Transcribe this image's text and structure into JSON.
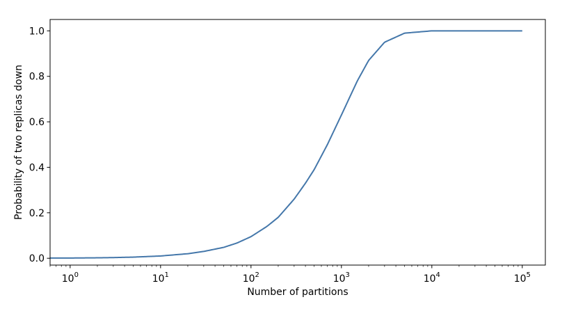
{
  "chart_data": {
    "type": "line",
    "title": "",
    "xlabel": "Number of partitions",
    "ylabel": "Probability of two replicas down",
    "xscale": "log",
    "xlim": [
      0.6,
      180000
    ],
    "ylim": [
      -0.03,
      1.05
    ],
    "xticks": [
      {
        "value": 1,
        "base": "10",
        "exp": "0"
      },
      {
        "value": 10,
        "base": "10",
        "exp": "1"
      },
      {
        "value": 100,
        "base": "10",
        "exp": "2"
      },
      {
        "value": 1000,
        "base": "10",
        "exp": "3"
      },
      {
        "value": 10000,
        "base": "10",
        "exp": "4"
      },
      {
        "value": 100000,
        "base": "10",
        "exp": "5"
      }
    ],
    "yticks": [
      "0.0",
      "0.2",
      "0.4",
      "0.6",
      "0.8",
      "1.0"
    ],
    "grid": false,
    "series": [
      {
        "color": "#4477aa",
        "x": [
          0.6,
          1,
          2,
          3,
          5,
          10,
          20,
          30,
          50,
          70,
          100,
          150,
          200,
          300,
          400,
          500,
          700,
          1000,
          1500,
          2000,
          3000,
          5000,
          10000,
          20000,
          50000,
          100000
        ],
        "y": [
          0.001,
          0.001,
          0.002,
          0.003,
          0.005,
          0.01,
          0.02,
          0.03,
          0.048,
          0.067,
          0.095,
          0.14,
          0.18,
          0.26,
          0.33,
          0.39,
          0.5,
          0.63,
          0.78,
          0.87,
          0.95,
          0.99,
          1.0,
          1.0,
          1.0,
          1.0
        ]
      }
    ]
  }
}
